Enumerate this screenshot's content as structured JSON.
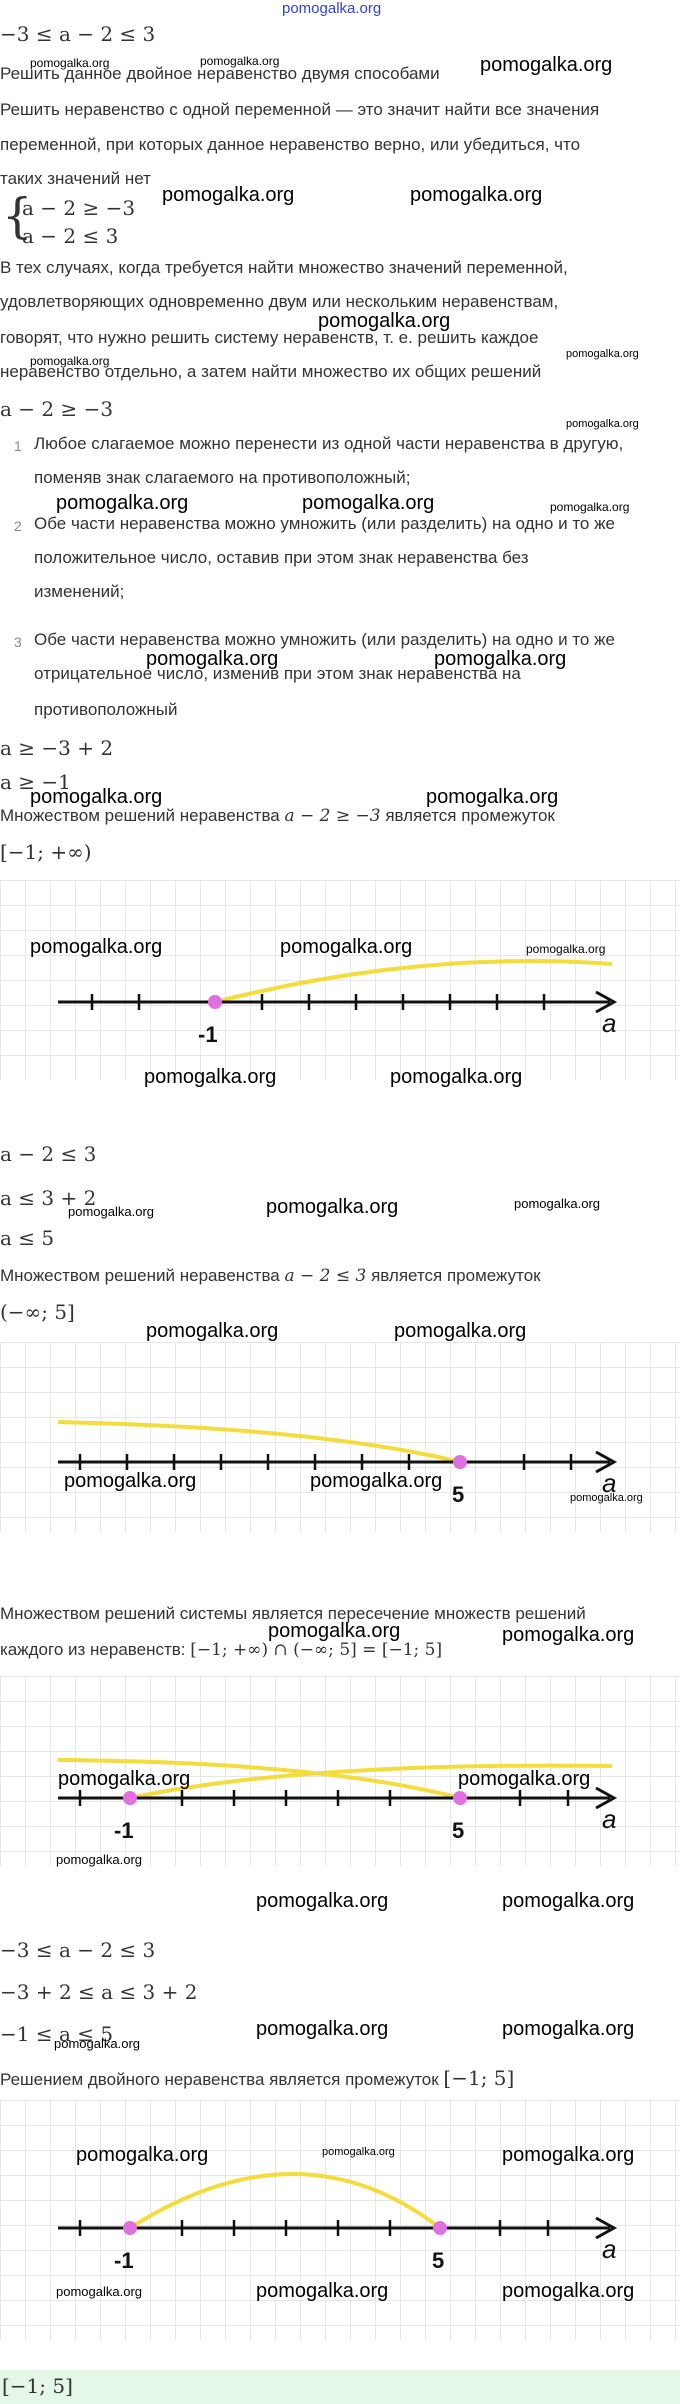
{
  "watermark": "pomogalka.org",
  "lines": {
    "l1": "−3 ≤ a − 2 ≤ 3",
    "t1": "Решить данное двойное неравенство двумя способами",
    "t2": "Решить неравенство с одной переменной — это значит найти все значения",
    "t3": "переменной, при которых данное неравенство верно, или убедиться, что",
    "t4": "таких значений нет",
    "sys1": "a − 2 ≥ −3",
    "sys2": "a − 2 ≤ 3",
    "t5": "В тех случаях, когда требуется найти множество значений переменной,",
    "t6": "удовлетворяющих одновременно двум или нескольким неравенствам,",
    "t7": "говорят, что нужно решить систему неравенств, т. е. решить каждое",
    "t8": "неравенство отдельно, а затем найти множество их общих решений",
    "m1": "a − 2 ≥ −3",
    "rules": [
      {
        "n": "1",
        "a": "Любое слагаемое можно перенести из одной части неравенства в другую,",
        "b": "поменяв знак слагаемого на противоположный;"
      },
      {
        "n": "2",
        "a": "Обе части неравенства можно умножить (или разделить) на одно и то же",
        "b": "положительное число, оставив при этом знак неравенства без",
        "c": "изменений;"
      },
      {
        "n": "3",
        "a": "Обе части неравенства можно умножить (или разделить) на одно и то же",
        "b": "отрицательное число, изменив при этом знак неравенства на",
        "c": "противоположный"
      }
    ],
    "m2": "a ≥ −3 + 2",
    "m3": "a ≥ −1",
    "t9a": "Множеством решений неравенства ",
    "t9m": "a − 2 ≥ −3",
    "t9b": " является промежуток",
    "m4": "[−1; +∞)",
    "m5": "a − 2 ≤ 3",
    "m6": "a ≤ 3 + 2",
    "m7": "a ≤ 5",
    "t10a": "Множеством решений неравенства ",
    "t10m": "a − 2 ≤ 3",
    "t10b": " является промежуток",
    "m8": "(−∞; 5]",
    "t11": "Множеством решений системы является пересечение множеств решений",
    "t12a": "каждого из неравенств: ",
    "t12m": "[−1; +∞) ∩ (−∞; 5] = [−1; 5]",
    "m9": "−3 ≤ a − 2 ≤ 3",
    "m10": "−3 + 2 ≤ a ≤ 3 + 2",
    "m11": "−1 ≤ a ≤ 5",
    "t13a": "Решением двойного неравенства является промежуток ",
    "t13m": "[−1; 5]",
    "answer": "[−1; 5]"
  },
  "graph": {
    "axis_label": "a",
    "label_minus1": "-1",
    "label_5": "5"
  },
  "colors": {
    "arc": "#f5dc3c",
    "point": "#e070e0",
    "axis": "#111111",
    "answer_bg": "#e5f8e8"
  }
}
